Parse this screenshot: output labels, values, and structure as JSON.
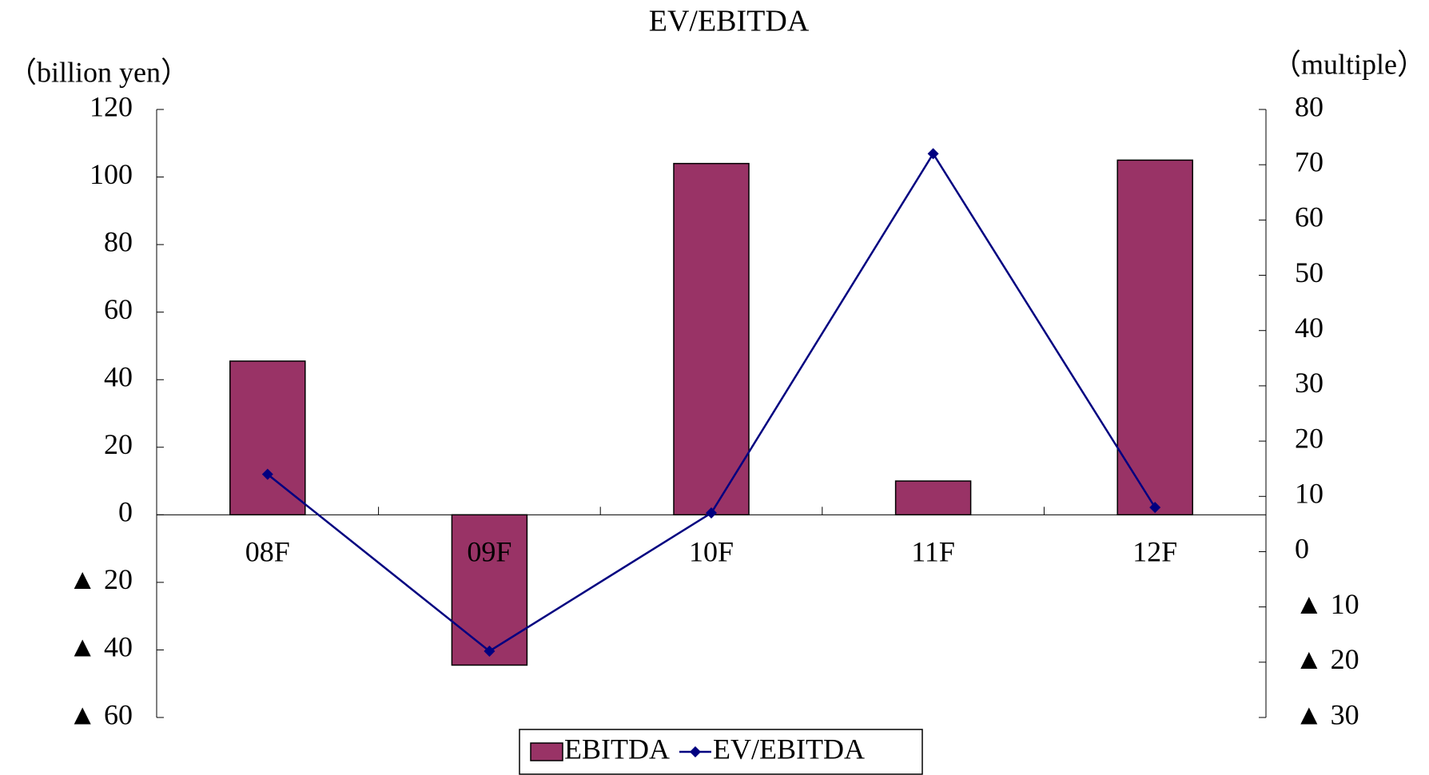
{
  "chart_data": {
    "type": "bar",
    "title": "EV/EBITDA",
    "ylabel": "（billion yen）",
    "y2label": "（multiple）",
    "categories": [
      "08F",
      "09F",
      "10F",
      "11F",
      "12F"
    ],
    "series": [
      {
        "name": "EBITDA",
        "type": "bar",
        "color": "#993366",
        "values": [
          45.5,
          -44.5,
          104,
          10,
          105
        ]
      },
      {
        "name": "EV/EBITDA",
        "type": "line",
        "color": "#000080",
        "axis": "y2",
        "values": [
          14,
          -18,
          7,
          72,
          8
        ]
      }
    ],
    "ylim": [
      -60,
      120
    ],
    "yticks": [
      {
        "value": -60,
        "label": "▲ 60"
      },
      {
        "value": -40,
        "label": "▲ 40"
      },
      {
        "value": -20,
        "label": "▲ 20"
      },
      0,
      20,
      40,
      60,
      80,
      100,
      120
    ],
    "y2lim": [
      -30,
      80
    ],
    "y2ticks": [
      {
        "value": -30,
        "label": "▲ 30"
      },
      {
        "value": -20,
        "label": "▲ 20"
      },
      {
        "value": -10,
        "label": "▲ 10"
      },
      0,
      10,
      20,
      30,
      40,
      50,
      60,
      70,
      80
    ],
    "legend": "bottom",
    "grid": false
  }
}
